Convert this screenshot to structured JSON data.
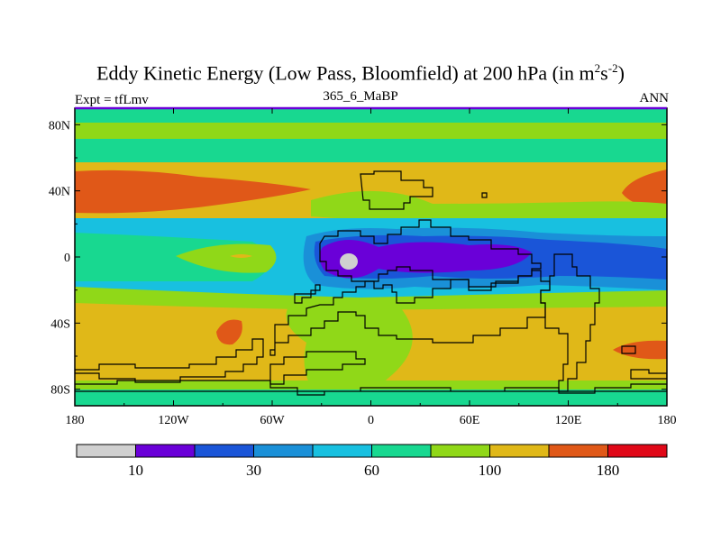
{
  "title": {
    "main": "Eddy Kinetic Energy (Low Pass, Bloomfield) at 200 hPa (in m",
    "exp1": "2",
    "mid": "s",
    "exp2": "-2",
    "end": ")"
  },
  "subtitle_left": "Expt = tfLmv",
  "subtitle_center": "365_6_MaBP",
  "subtitle_right": "ANN",
  "chart_data": {
    "type": "heatmap",
    "variable": "Eddy Kinetic Energy at 200 hPa",
    "units": "m2 s-2",
    "xlim": [
      -180,
      180
    ],
    "ylim": [
      -90,
      90
    ],
    "x_ticks": [
      {
        "value": -180,
        "label": "180"
      },
      {
        "value": -120,
        "label": "120W"
      },
      {
        "value": -60,
        "label": "60W"
      },
      {
        "value": 0,
        "label": "0"
      },
      {
        "value": 60,
        "label": "60E"
      },
      {
        "value": 120,
        "label": "120E"
      },
      {
        "value": 180,
        "label": "180"
      }
    ],
    "y_ticks": [
      {
        "value": 80,
        "label": "80N"
      },
      {
        "value": 40,
        "label": "40N"
      },
      {
        "value": 0,
        "label": "0"
      },
      {
        "value": -40,
        "label": "40S"
      },
      {
        "value": -80,
        "label": "80S"
      }
    ],
    "colorbar": {
      "colors": [
        "#d0d0d0",
        "#6a00d8",
        "#1a55d8",
        "#1a90d8",
        "#18c0e0",
        "#18d890",
        "#90d818",
        "#e0b818",
        "#e05818",
        "#e00818"
      ],
      "labels": [
        {
          "boundary": 1,
          "text": "10"
        },
        {
          "boundary": 3,
          "text": "30"
        },
        {
          "boundary": 5,
          "text": "60"
        },
        {
          "boundary": 7,
          "text": "100"
        },
        {
          "boundary": 9,
          "text": "180"
        }
      ]
    },
    "regions": [
      {
        "cat": 8,
        "label": "NH jet maximum",
        "lon": [
          -180,
          -35
        ],
        "lat": [
          20,
          50
        ]
      },
      {
        "cat": 8,
        "label": "NE jet maximum",
        "lon": [
          150,
          180
        ],
        "lat": [
          20,
          50
        ]
      },
      {
        "cat": 8,
        "label": "SH jet maximum",
        "lon": [
          -92,
          -75
        ],
        "lat": [
          -52,
          -38
        ]
      },
      {
        "cat": 8,
        "label": "SE jet maximum",
        "lon": [
          150,
          178
        ],
        "lat": [
          -62,
          -50
        ]
      },
      {
        "cat": 1,
        "label": "equatorial minimum",
        "lon": [
          -30,
          100
        ],
        "lat": [
          -15,
          15
        ]
      },
      {
        "cat": 0,
        "label": "lowest value",
        "lon": [
          -15,
          -7
        ],
        "lat": [
          -5,
          2
        ]
      }
    ]
  }
}
